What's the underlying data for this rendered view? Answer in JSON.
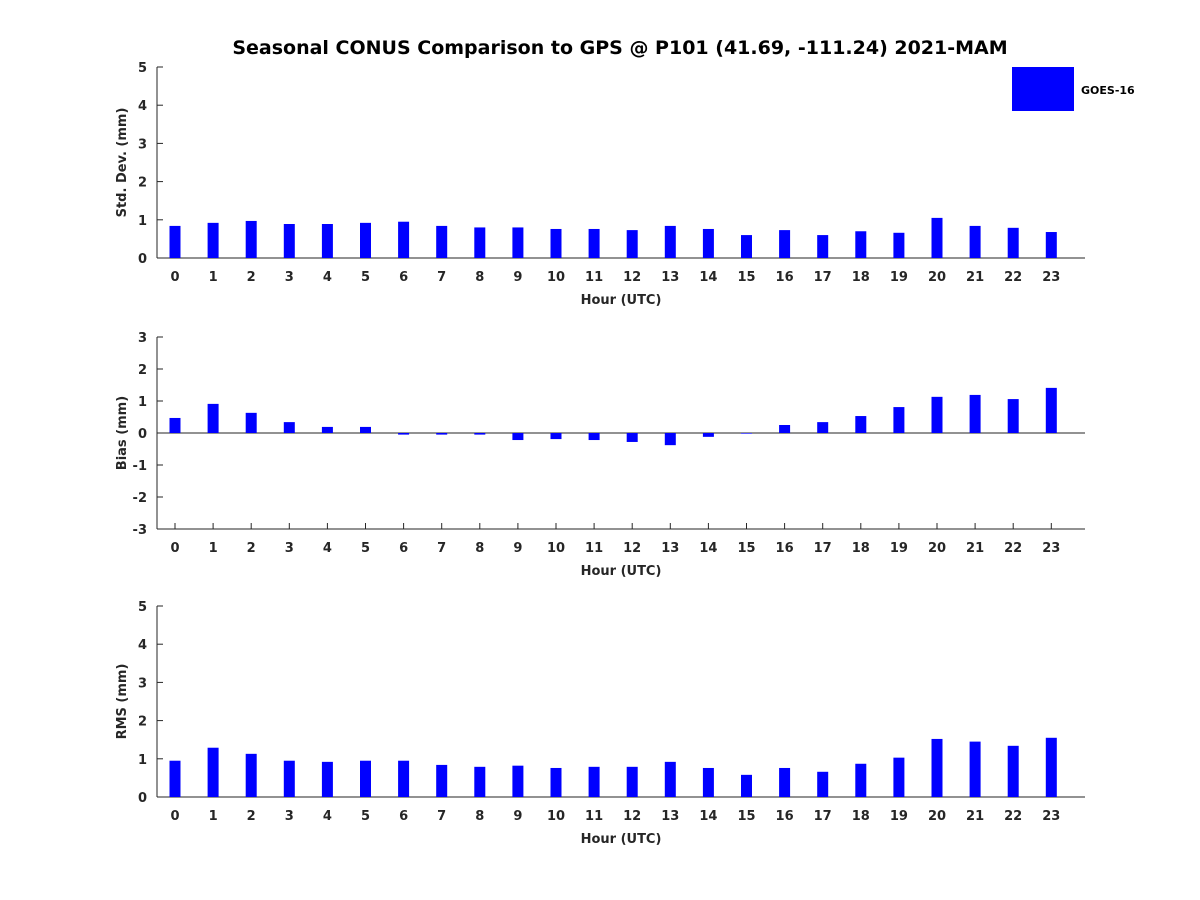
{
  "title": "Seasonal CONUS Comparison to GPS @ P101 (41.69, -111.24) 2021-MAM",
  "legend": {
    "label": "GOES-16",
    "color": "#0000ff",
    "placement": "top-right"
  },
  "chart_data": [
    {
      "type": "bar",
      "name": "std",
      "categories": [
        "0",
        "1",
        "2",
        "3",
        "4",
        "5",
        "6",
        "7",
        "8",
        "9",
        "10",
        "11",
        "12",
        "13",
        "14",
        "15",
        "16",
        "17",
        "18",
        "19",
        "20",
        "21",
        "22",
        "23"
      ],
      "series": [
        {
          "name": "GOES-16",
          "values": [
            0.84,
            0.92,
            0.97,
            0.89,
            0.89,
            0.92,
            0.95,
            0.84,
            0.8,
            0.8,
            0.76,
            0.76,
            0.73,
            0.84,
            0.76,
            0.6,
            0.73,
            0.6,
            0.7,
            0.66,
            1.05,
            0.84,
            0.79,
            0.68
          ]
        }
      ],
      "xlabel": "Hour (UTC)",
      "ylabel": "Std. Dev. (mm)",
      "ylim": [
        0,
        5
      ],
      "yticks": [
        "0",
        "1",
        "2",
        "3",
        "4",
        "5"
      ]
    },
    {
      "type": "bar",
      "name": "bias",
      "categories": [
        "0",
        "1",
        "2",
        "3",
        "4",
        "5",
        "6",
        "7",
        "8",
        "9",
        "10",
        "11",
        "12",
        "13",
        "14",
        "15",
        "16",
        "17",
        "18",
        "19",
        "20",
        "21",
        "22",
        "23"
      ],
      "series": [
        {
          "name": "GOES-16",
          "values": [
            0.47,
            0.91,
            0.63,
            0.34,
            0.19,
            0.19,
            -0.05,
            -0.05,
            -0.05,
            -0.22,
            -0.19,
            -0.22,
            -0.28,
            -0.38,
            -0.12,
            -0.02,
            0.25,
            0.34,
            0.53,
            0.81,
            1.13,
            1.19,
            1.06,
            1.41
          ]
        }
      ],
      "xlabel": "Hour (UTC)",
      "ylabel": "Bias (mm)",
      "ylim": [
        -3,
        3
      ],
      "yticks": [
        "-3",
        "-2",
        "-1",
        "0",
        "1",
        "2",
        "3"
      ]
    },
    {
      "type": "bar",
      "name": "rms",
      "categories": [
        "0",
        "1",
        "2",
        "3",
        "4",
        "5",
        "6",
        "7",
        "8",
        "9",
        "10",
        "11",
        "12",
        "13",
        "14",
        "15",
        "16",
        "17",
        "18",
        "19",
        "20",
        "21",
        "22",
        "23"
      ],
      "series": [
        {
          "name": "GOES-16",
          "values": [
            0.95,
            1.29,
            1.13,
            0.95,
            0.92,
            0.95,
            0.95,
            0.84,
            0.79,
            0.82,
            0.76,
            0.79,
            0.79,
            0.92,
            0.76,
            0.58,
            0.76,
            0.66,
            0.87,
            1.03,
            1.52,
            1.45,
            1.34,
            1.55
          ]
        }
      ],
      "xlabel": "Hour (UTC)",
      "ylabel": "RMS (mm)",
      "ylim": [
        0,
        5
      ],
      "yticks": [
        "0",
        "1",
        "2",
        "3",
        "4",
        "5"
      ]
    }
  ]
}
